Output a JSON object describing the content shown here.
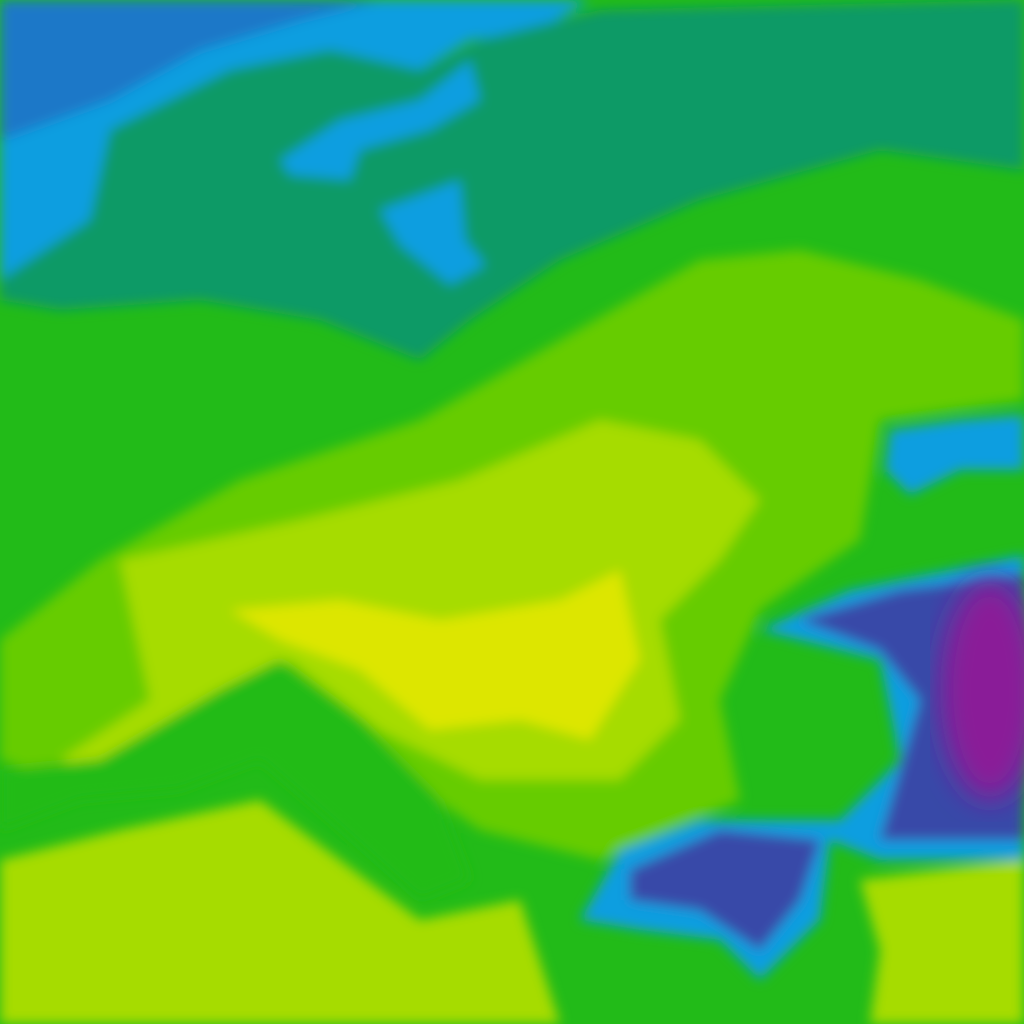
{
  "map": {
    "type": "color-field raster tile",
    "palette": {
      "deep_blue": "#1a78c8",
      "light_blue": "#0a9ee0",
      "teal": "#119a66",
      "green": "#22bb18",
      "green_yellow": "#66cc00",
      "yellow_green": "#a6dc00",
      "yellow": "#dde600",
      "indigo": "#3848a8",
      "purple": "#8a1a98"
    }
  }
}
